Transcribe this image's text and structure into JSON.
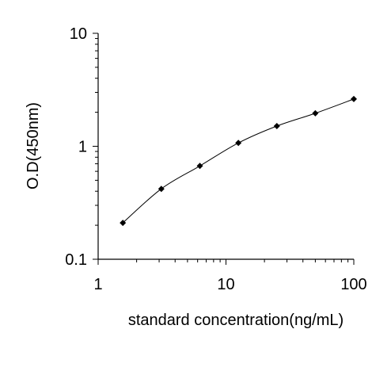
{
  "chart_data": {
    "type": "line",
    "title": "",
    "xlabel": "standard concentration(ng/mL)",
    "ylabel": "O.D(450nm)",
    "x_scale": "log",
    "y_scale": "log",
    "xlim": [
      1,
      100
    ],
    "ylim": [
      0.1,
      10
    ],
    "x_ticks": [
      {
        "value": 1,
        "label": "1"
      },
      {
        "value": 10,
        "label": "10"
      },
      {
        "value": 100,
        "label": "100"
      }
    ],
    "y_ticks": [
      {
        "value": 0.1,
        "label": "0.1"
      },
      {
        "value": 1,
        "label": "1"
      },
      {
        "value": 10,
        "label": "10"
      }
    ],
    "grid": false,
    "legend": "none",
    "line_color": "#000000",
    "marker": "diamond",
    "series": [
      {
        "x": [
          1.56,
          3.12,
          6.25,
          12.5,
          25,
          50,
          100
        ],
        "y": [
          0.21,
          0.42,
          0.67,
          1.07,
          1.51,
          1.96,
          2.62
        ]
      }
    ]
  }
}
